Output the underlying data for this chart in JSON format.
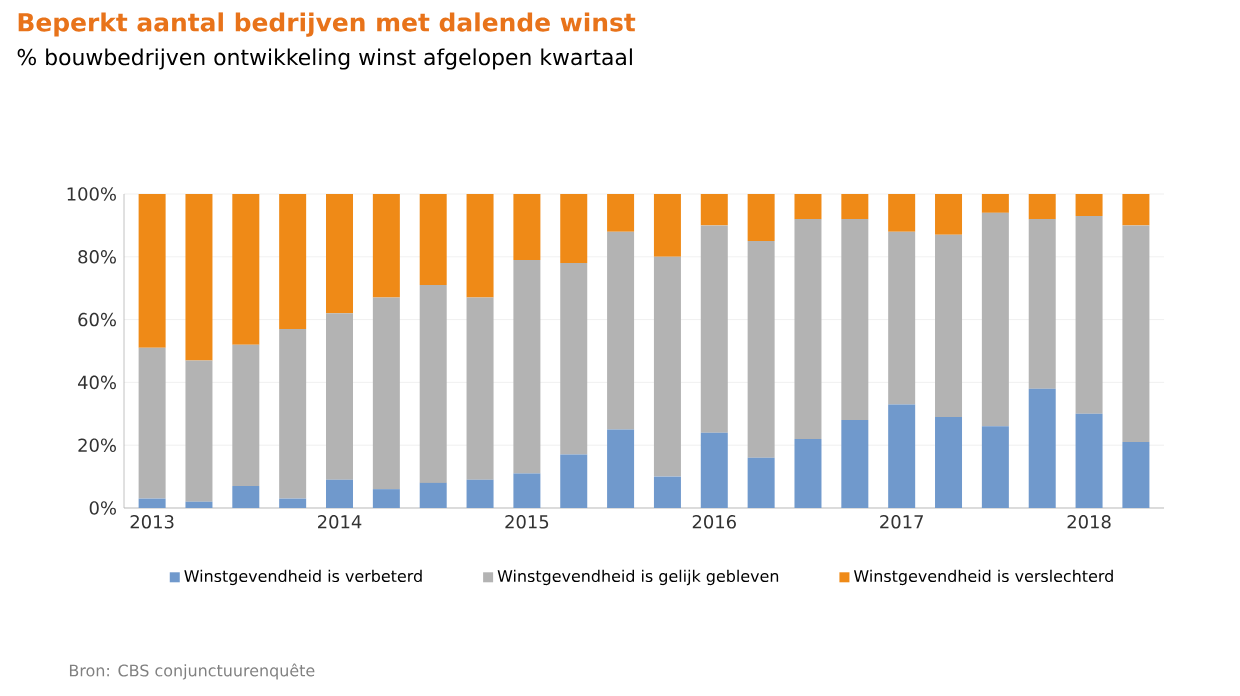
{
  "chart_data": {
    "type": "bar",
    "stacked": true,
    "title": "Beperkt aantal bedrijven met dalende winst",
    "subtitle": "% bouwbedrijven ontwikkeling winst afgelopen kwartaal",
    "categories": [
      "2013",
      null,
      null,
      null,
      "2014",
      null,
      null,
      null,
      "2015",
      null,
      null,
      null,
      "2016",
      null,
      null,
      null,
      "2017",
      null,
      null,
      null,
      "2018",
      null
    ],
    "series": [
      {
        "name": "Winstgevendheid is verbeterd",
        "color": "#7099cc",
        "values": [
          3,
          2,
          7,
          3,
          9,
          6,
          8,
          9,
          11,
          17,
          25,
          10,
          24,
          16,
          22,
          28,
          33,
          29,
          26,
          38,
          30,
          21
        ]
      },
      {
        "name": "Winstgevendheid is gelijk gebleven",
        "color": "#b3b3b3",
        "values": [
          48,
          45,
          45,
          54,
          53,
          61,
          63,
          58,
          68,
          61,
          63,
          70,
          66,
          69,
          70,
          64,
          55,
          58,
          68,
          54,
          63,
          69
        ]
      },
      {
        "name": "Winstgevendheid is verslechterd",
        "color": "#ef8a17",
        "values": [
          49,
          53,
          48,
          43,
          38,
          33,
          29,
          33,
          21,
          22,
          12,
          20,
          10,
          15,
          8,
          8,
          12,
          13,
          6,
          8,
          7,
          10
        ]
      }
    ],
    "ylim": [
      0,
      100
    ],
    "yticks": [
      {
        "value": 0,
        "label": "0%"
      },
      {
        "value": 20,
        "label": "20%"
      },
      {
        "value": 40,
        "label": "40%"
      },
      {
        "value": 60,
        "label": "60%"
      },
      {
        "value": 80,
        "label": "80%"
      },
      {
        "value": 100,
        "label": "100%"
      }
    ],
    "grid": "y",
    "legend": "bottom",
    "annotations": [
      "Bron: CBS conjunctuurenquête"
    ]
  }
}
